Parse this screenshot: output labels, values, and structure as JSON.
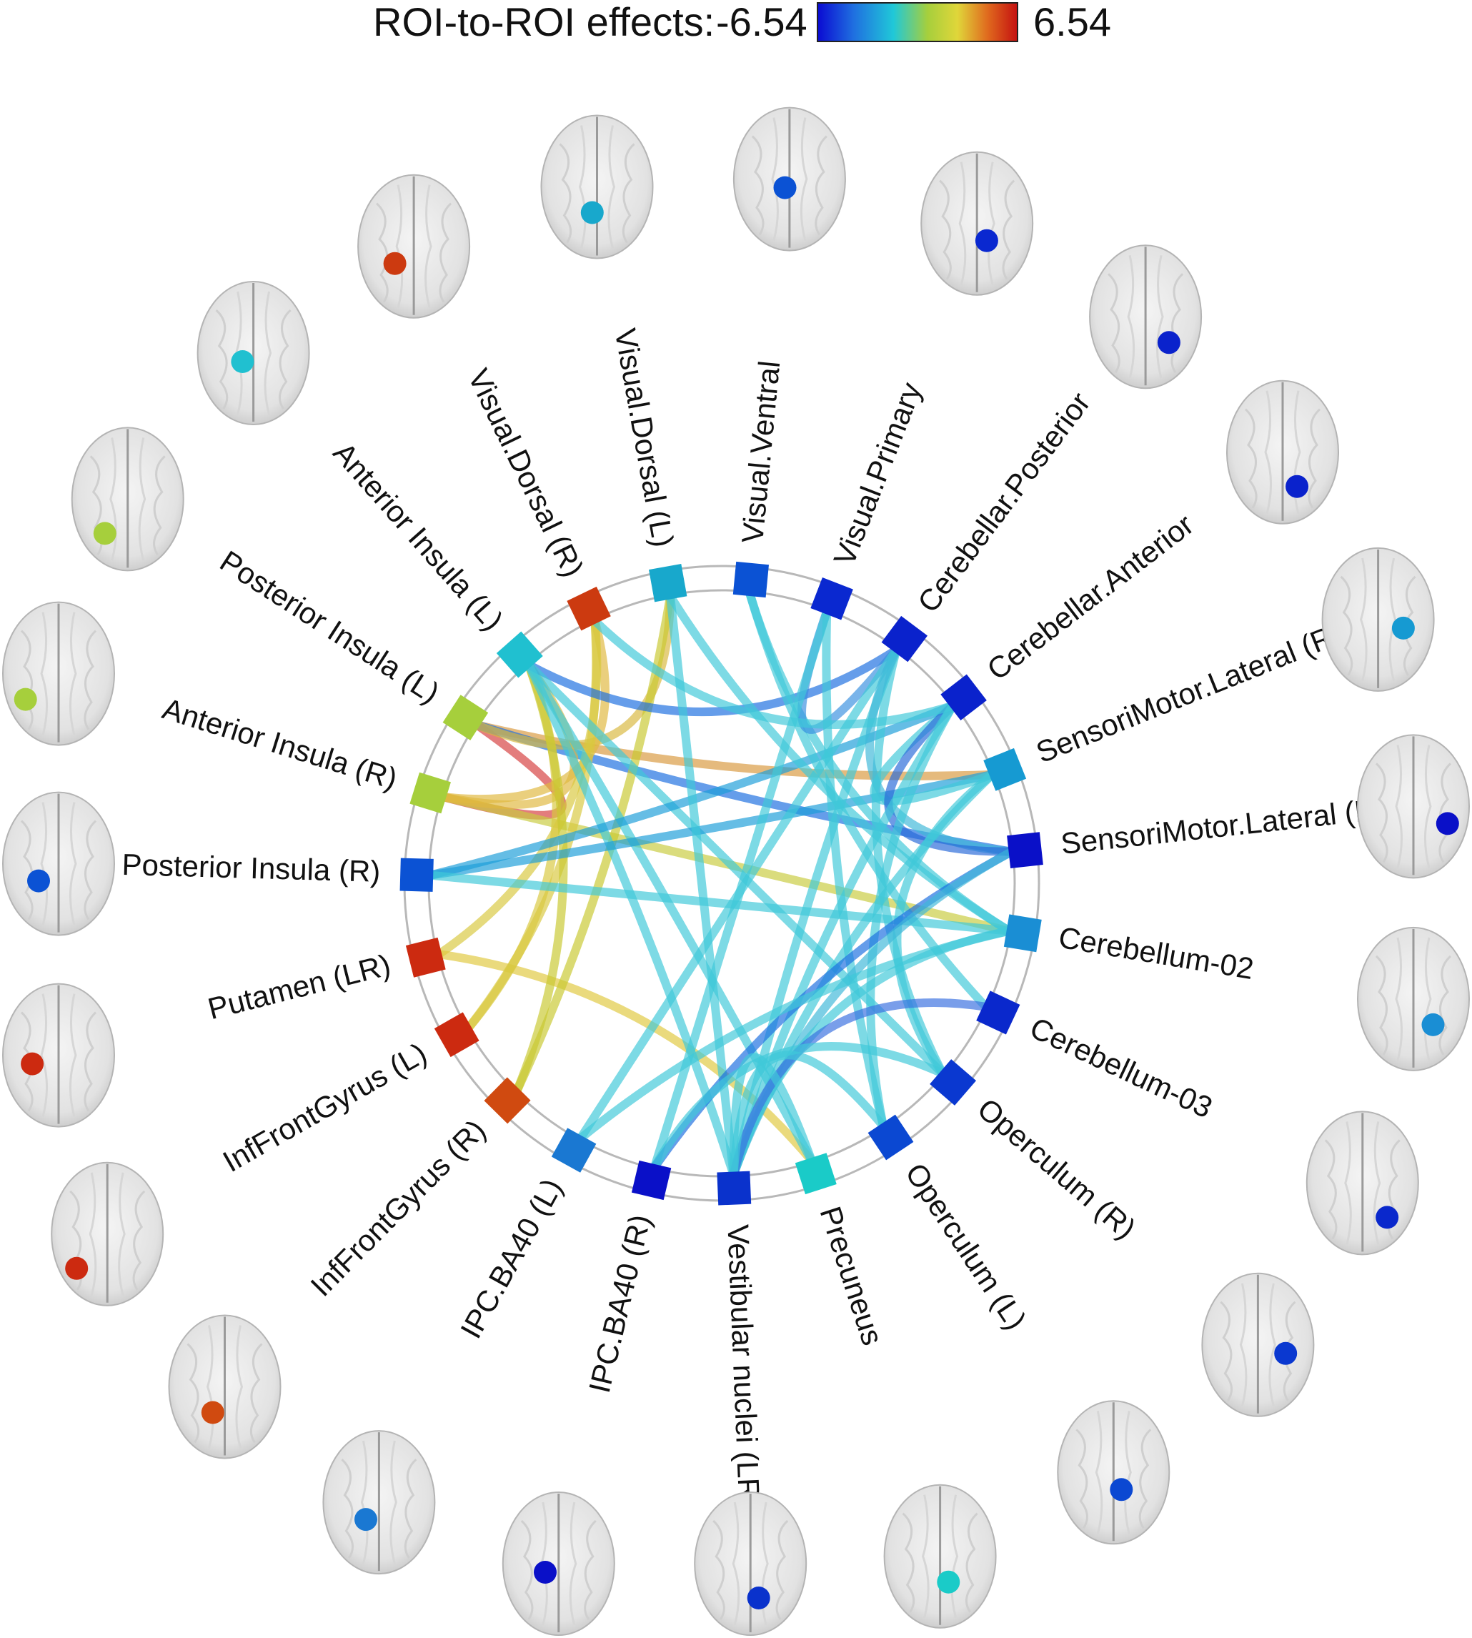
{
  "legend": {
    "title": "ROI-to-ROI effects:",
    "min_label": "-6.54",
    "max_label": "6.54",
    "colormap": [
      "#0a0ad2",
      "#1f6fe0",
      "#20c8d8",
      "#a6cf3c",
      "#e0d63a",
      "#e06a1e",
      "#c41010"
    ]
  },
  "rois": [
    {
      "id": "vis_ventral",
      "label": "Visual.Ventral",
      "color": "#0b52d4"
    },
    {
      "id": "vis_primary",
      "label": "Visual.Primary",
      "color": "#0a28d0"
    },
    {
      "id": "cereb_post",
      "label": "Cerebellar.Posterior",
      "color": "#0a22cc"
    },
    {
      "id": "cereb_ant",
      "label": "Cerebellar.Anterior",
      "color": "#0a22cc"
    },
    {
      "id": "sm_lat_r",
      "label": "SensoriMotor.Lateral (R)",
      "color": "#169ad2"
    },
    {
      "id": "sm_lat_l",
      "label": "SensoriMotor.Lateral (L)",
      "color": "#0a10c8"
    },
    {
      "id": "cereb_02",
      "label": "Cerebellum-02",
      "color": "#1a8ed4"
    },
    {
      "id": "cereb_03",
      "label": "Cerebellum-03",
      "color": "#0a28cc"
    },
    {
      "id": "operc_r",
      "label": "Operculum (R)",
      "color": "#0a38d0"
    },
    {
      "id": "operc_l",
      "label": "Operculum (L)",
      "color": "#0b48d2"
    },
    {
      "id": "precuneus",
      "label": "Precuneus",
      "color": "#1acbc8"
    },
    {
      "id": "vestib",
      "label": "Vestibular nuclei (LR)",
      "color": "#0a32cc"
    },
    {
      "id": "ipc_r",
      "label": "IPC.BA40 (R)",
      "color": "#0a10c8"
    },
    {
      "id": "ipc_l",
      "label": "IPC.BA40 (L)",
      "color": "#1a78d2"
    },
    {
      "id": "ifg_r",
      "label": "InfFrontGyrus (R)",
      "color": "#d04a10"
    },
    {
      "id": "ifg_l",
      "label": "InfFrontGyrus (L)",
      "color": "#cc2a10"
    },
    {
      "id": "putamen",
      "label": "Putamen (LR)",
      "color": "#cc2a10"
    },
    {
      "id": "post_ins_r",
      "label": "Posterior Insula (R)",
      "color": "#0b52d4"
    },
    {
      "id": "ant_ins_r",
      "label": "Anterior Insula (R)",
      "color": "#a6cf3c"
    },
    {
      "id": "post_ins_l",
      "label": "Posterior Insula (L)",
      "color": "#a6cf3c"
    },
    {
      "id": "ant_ins_l",
      "label": "Anterior Insula (L)",
      "color": "#20c0d0"
    },
    {
      "id": "vis_dorsal_r",
      "label": "Visual.Dorsal (R)",
      "color": "#cc3a10"
    },
    {
      "id": "vis_dorsal_l",
      "label": "Visual.Dorsal (L)",
      "color": "#18a8cc"
    }
  ],
  "connections": [
    {
      "from": "ant_ins_r",
      "to": "post_ins_l",
      "color": "#d64040"
    },
    {
      "from": "post_ins_l",
      "to": "sm_lat_r",
      "color": "#d89a40"
    },
    {
      "from": "post_ins_l",
      "to": "sm_lat_l",
      "color": "#1c6fe0"
    },
    {
      "from": "post_ins_l",
      "to": "vis_dorsal_l",
      "color": "#d8b840"
    },
    {
      "from": "ant_ins_r",
      "to": "cereb_02",
      "color": "#c8cc40"
    },
    {
      "from": "ant_ins_r",
      "to": "vis_dorsal_r",
      "color": "#e0b840"
    },
    {
      "from": "ant_ins_r",
      "to": "ant_ins_l",
      "color": "#e0b840"
    },
    {
      "from": "putamen",
      "to": "vis_dorsal_r",
      "color": "#d8c840"
    },
    {
      "from": "putamen",
      "to": "precuneus",
      "color": "#e0c840"
    },
    {
      "from": "ifg_l",
      "to": "ant_ins_l",
      "color": "#d8c840"
    },
    {
      "from": "ifg_l",
      "to": "vis_dorsal_r",
      "color": "#d8c840"
    },
    {
      "from": "ifg_r",
      "to": "ant_ins_l",
      "color": "#c8c830"
    },
    {
      "from": "ifg_r",
      "to": "vis_dorsal_l",
      "color": "#c8c830"
    },
    {
      "from": "ant_ins_l",
      "to": "precuneus",
      "color": "#40c8d8"
    },
    {
      "from": "ant_ins_l",
      "to": "cereb_post",
      "color": "#1c6fe0"
    },
    {
      "from": "ant_ins_l",
      "to": "operc_r",
      "color": "#40c8d8"
    },
    {
      "from": "ant_ins_l",
      "to": "vestib",
      "color": "#40c8d8"
    },
    {
      "from": "post_ins_r",
      "to": "cereb_ant",
      "color": "#1c9ed8"
    },
    {
      "from": "post_ins_r",
      "to": "sm_lat_r",
      "color": "#1c9ed8"
    },
    {
      "from": "post_ins_r",
      "to": "cereb_02",
      "color": "#40c8d8"
    },
    {
      "from": "vis_dorsal_l",
      "to": "cereb_02",
      "color": "#40c8d8"
    },
    {
      "from": "vis_dorsal_l",
      "to": "vestib",
      "color": "#40c8d8"
    },
    {
      "from": "vis_ventral",
      "to": "cereb_02",
      "color": "#40c8d8"
    },
    {
      "from": "vis_ventral",
      "to": "cereb_03",
      "color": "#40c8d8"
    },
    {
      "from": "vis_primary",
      "to": "cereb_post",
      "color": "#3a90e0"
    },
    {
      "from": "vis_primary",
      "to": "ipc_r",
      "color": "#40c8d8"
    },
    {
      "from": "vis_primary",
      "to": "operc_l",
      "color": "#40c8d8"
    },
    {
      "from": "cereb_post",
      "to": "ipc_l",
      "color": "#40c8d8"
    },
    {
      "from": "cereb_post",
      "to": "vestib",
      "color": "#40c8d8"
    },
    {
      "from": "cereb_post",
      "to": "operc_r",
      "color": "#40c8d8"
    },
    {
      "from": "cereb_post",
      "to": "sm_lat_l",
      "color": "#40b8d8"
    },
    {
      "from": "cereb_ant",
      "to": "sm_lat_r",
      "color": "#40c8d8"
    },
    {
      "from": "cereb_ant",
      "to": "sm_lat_l",
      "color": "#2a6ad8"
    },
    {
      "from": "cereb_ant",
      "to": "operc_l",
      "color": "#40c8d8"
    },
    {
      "from": "cereb_ant",
      "to": "vestib",
      "color": "#40c8d8"
    },
    {
      "from": "cereb_ant",
      "to": "vis_dorsal_r",
      "color": "#40c8d8"
    },
    {
      "from": "sm_lat_r",
      "to": "vestib",
      "color": "#40c8d8"
    },
    {
      "from": "sm_lat_r",
      "to": "operc_r",
      "color": "#40c8d8"
    },
    {
      "from": "sm_lat_l",
      "to": "ipc_r",
      "color": "#1c6fe0"
    },
    {
      "from": "sm_lat_l",
      "to": "vestib",
      "color": "#40b8d8"
    },
    {
      "from": "cereb_02",
      "to": "ipc_l",
      "color": "#40c8d8"
    },
    {
      "from": "cereb_02",
      "to": "vestib",
      "color": "#40c8d8"
    },
    {
      "from": "cereb_03",
      "to": "vestib",
      "color": "#3a70e0"
    },
    {
      "from": "operc_l",
      "to": "vestib",
      "color": "#40c8d8"
    },
    {
      "from": "operc_r",
      "to": "ipc_r",
      "color": "#40c8d8"
    },
    {
      "from": "precuneus",
      "to": "vestib",
      "color": "#40c8d8"
    }
  ]
}
